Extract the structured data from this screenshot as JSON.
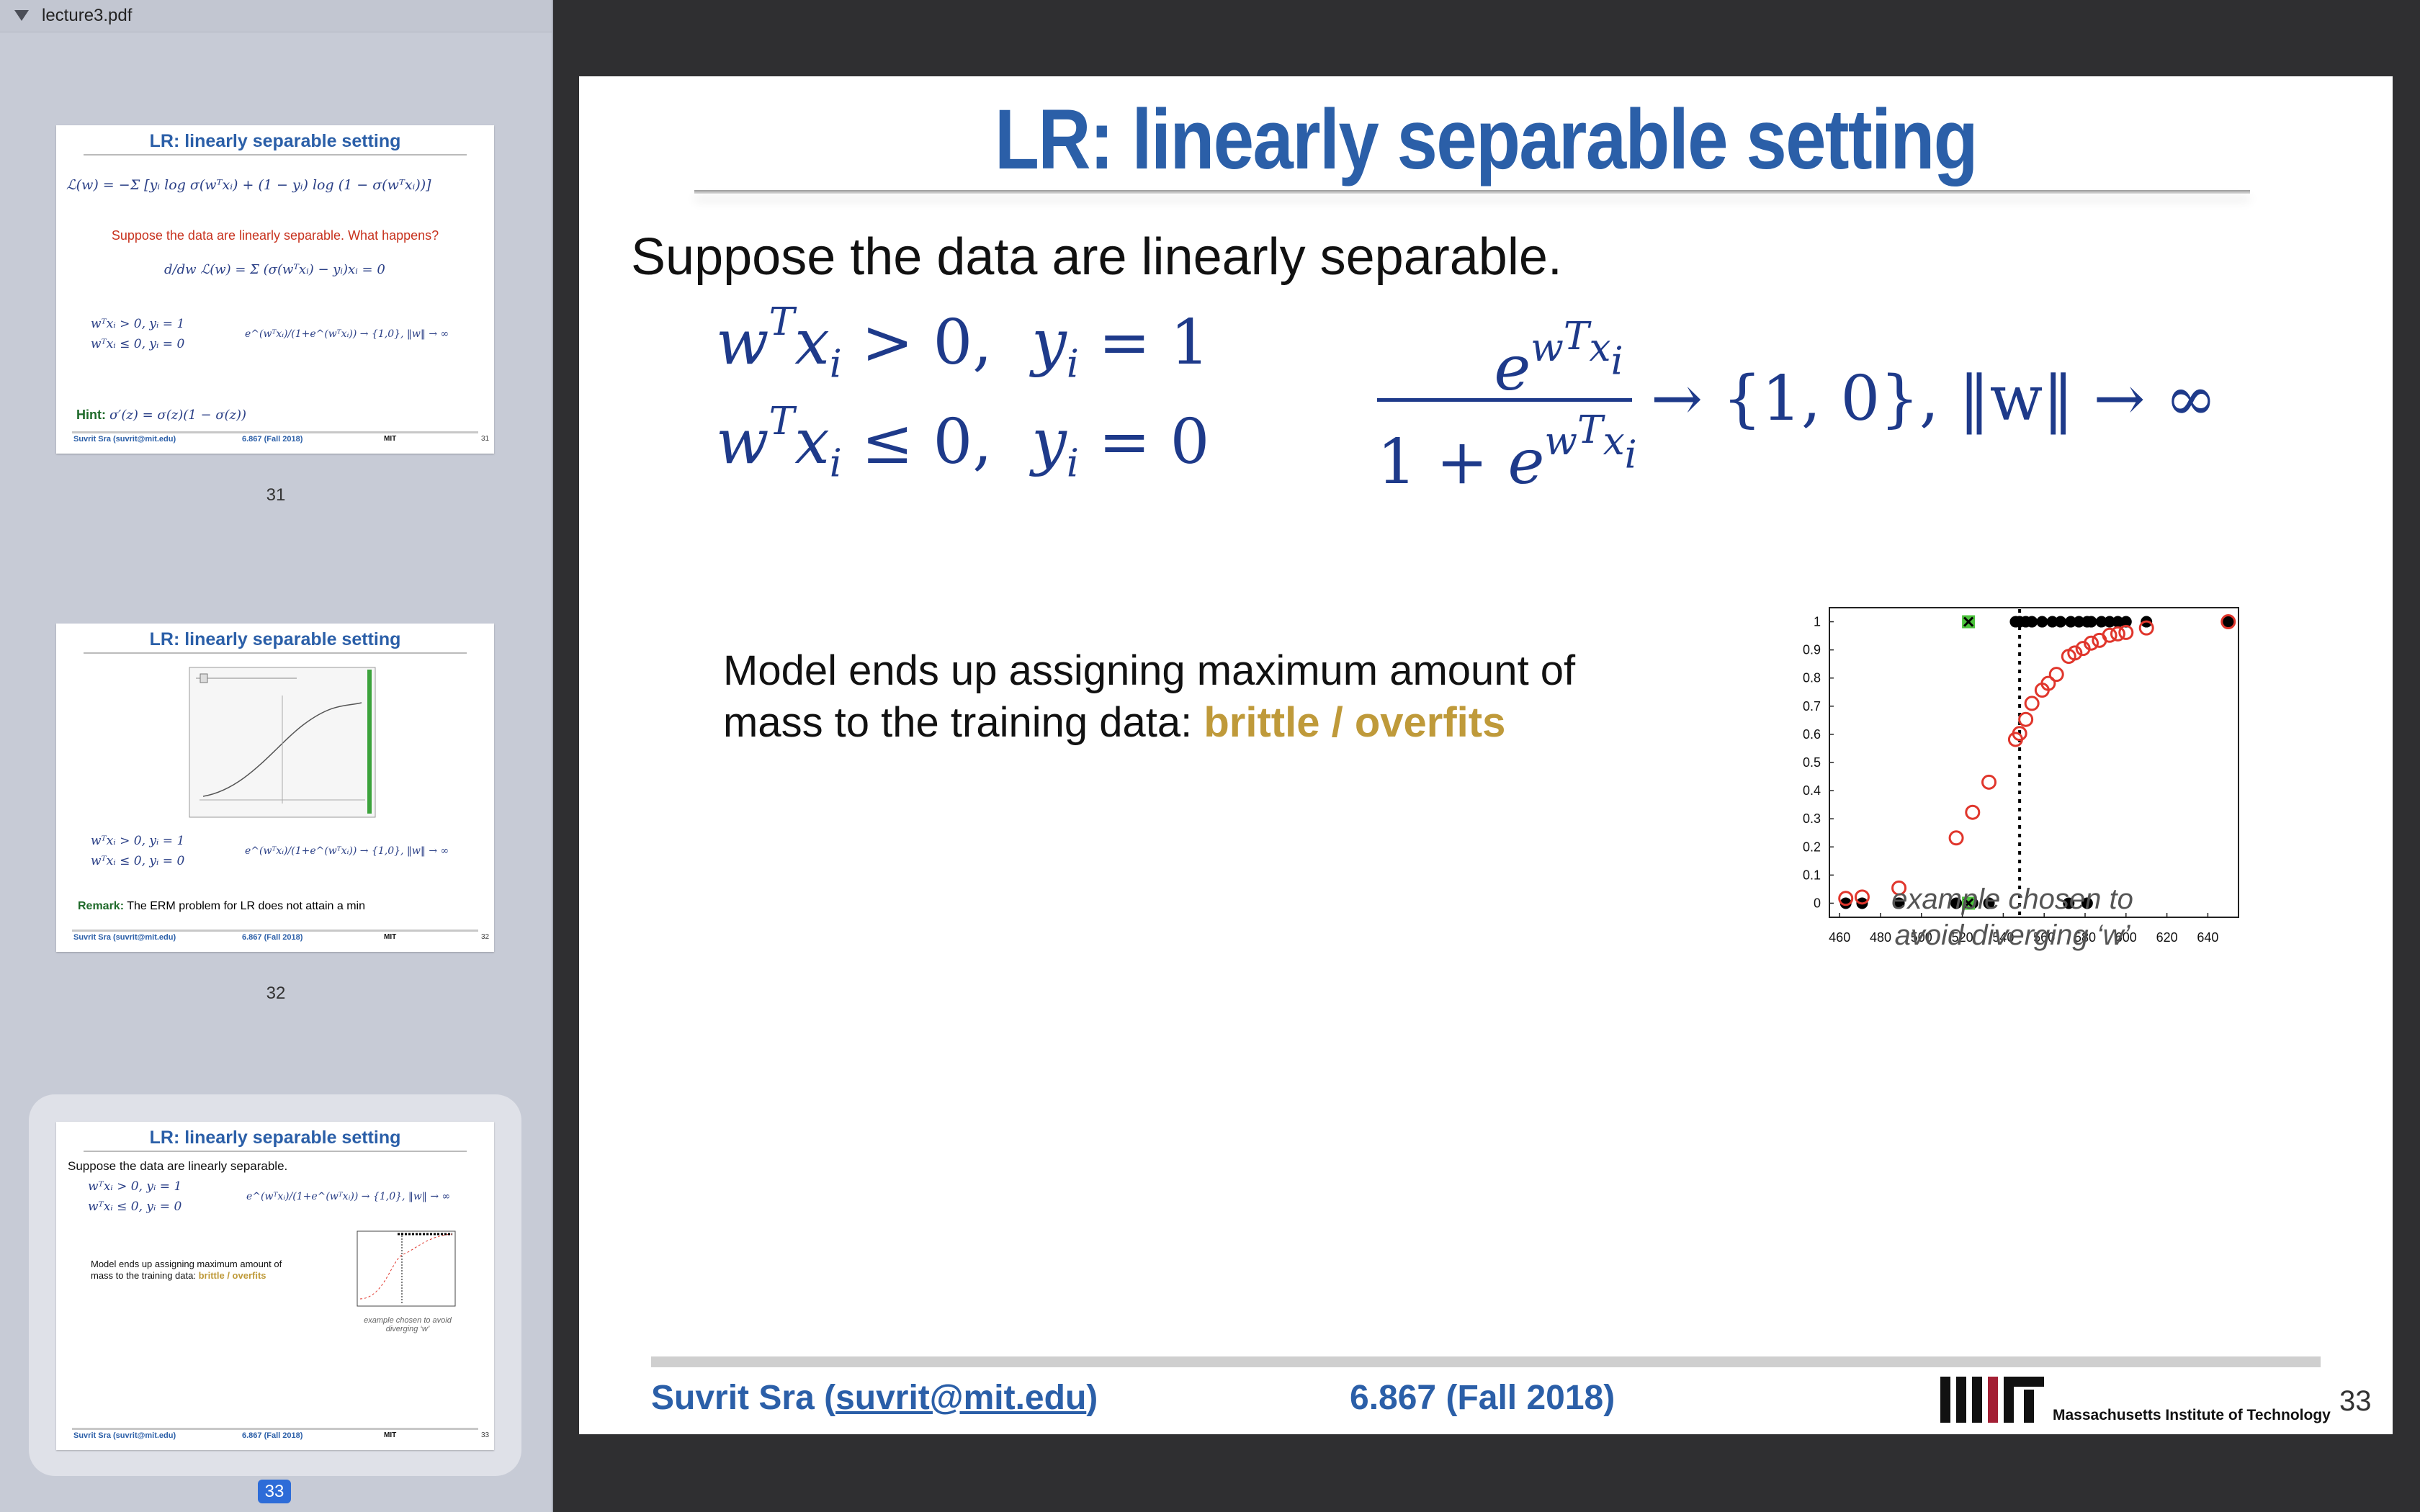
{
  "window": {
    "file_name": "lecture3.pdf"
  },
  "sidebar": {
    "selected_page": "33",
    "thumbnails": [
      {
        "page_label": "31",
        "title": "LR: linearly separable setting",
        "loss_formula": "ℒ(w) = −Σ [yᵢ log σ(wᵀxᵢ) + (1 − yᵢ) log (1 − σ(wᵀxᵢ))]",
        "question": "Suppose the data are linearly separable. What happens?",
        "gradient_formula": "d/dw ℒ(w) = Σ (σ(wᵀxᵢ) − yᵢ)xᵢ = 0",
        "cond1": "wᵀxᵢ > 0, yᵢ = 1",
        "cond2": "wᵀxᵢ ≤ 0, yᵢ = 0",
        "limit": "e^(wᵀxᵢ)/(1+e^(wᵀxᵢ)) → {1,0},  ‖w‖ → ∞",
        "hint_label": "Hint:",
        "hint": "σ′(z) = σ(z)(1 − σ(z))",
        "footer_author": "Suvrit Sra (suvrit@mit.edu)",
        "footer_course": "6.867 (Fall 2018)",
        "footer_number": "31"
      },
      {
        "page_label": "32",
        "title": "LR: linearly separable setting",
        "cond1": "wᵀxᵢ > 0, yᵢ = 1",
        "cond2": "wᵀxᵢ ≤ 0, yᵢ = 0",
        "limit": "e^(wᵀxᵢ)/(1+e^(wᵀxᵢ)) → {1,0},  ‖w‖ → ∞",
        "remark_label": "Remark:",
        "remark": "The ERM problem for LR does not attain a min",
        "footer_author": "Suvrit Sra (suvrit@mit.edu)",
        "footer_course": "6.867 (Fall 2018)",
        "footer_number": "32"
      },
      {
        "page_label": "33",
        "title": "LR: linearly separable setting",
        "intro": "Suppose the data are linearly separable.",
        "cond1": "wᵀxᵢ > 0, yᵢ = 1",
        "cond2": "wᵀxᵢ ≤ 0, yᵢ = 0",
        "limit": "e^(wᵀxᵢ)/(1+e^(wᵀxᵢ)) → {1,0},  ‖w‖ → ∞",
        "model_line1": "Model ends up assigning maximum amount of",
        "model_line2": "mass to the training data:",
        "model_highlight": "brittle / overfits",
        "caption": "example chosen to avoid diverging ‘w’",
        "footer_author": "Suvrit Sra (suvrit@mit.edu)",
        "footer_course": "6.867 (Fall 2018)",
        "footer_number": "33"
      }
    ]
  },
  "slide": {
    "title": "LR: linearly separable setting",
    "intro": "Suppose the data are linearly separable.",
    "eq_cond1": "wᵀxᵢ > 0,  yᵢ = 1",
    "eq_cond2": "wᵀxᵢ ≤ 0,  yᵢ = 0",
    "frac_numerator": "e^(wᵀxᵢ)",
    "frac_denominator": "1 + e^(wᵀxᵢ)",
    "limit_text": "→ {1, 0},    ‖w‖ → ∞",
    "model_line1": "Model ends up assigning maximum amount of",
    "model_line2": "mass to the training data: ",
    "model_highlight": "brittle / overfits",
    "caption_line1": "example chosen to",
    "caption_line2": "avoid diverging ‘w’",
    "footer_author_name": "Suvrit Sra (",
    "footer_author_email": "suvrit@mit.edu",
    "footer_author_close": ")",
    "footer_course": "6.867 (Fall 2018)",
    "footer_institution": "Massachusetts Institute of Technology",
    "slide_number": "33"
  },
  "colors": {
    "title_blue": "#2b5fa8",
    "math_blue": "#1e3a8a",
    "highlight_gold": "#bf9a3a",
    "curve_red": "#e0362c",
    "selection_blue": "#2d6cd8"
  },
  "chart_data": {
    "type": "scatter",
    "xlim": [
      455,
      655
    ],
    "ylim": [
      -0.05,
      1.05
    ],
    "x_ticks": [
      "460",
      "480",
      "500",
      "520",
      "540",
      "560",
      "580",
      "600",
      "620",
      "640"
    ],
    "y_ticks": [
      "0",
      "0.1",
      "0.2",
      "0.3",
      "0.4",
      "0.5",
      "0.6",
      "0.7",
      "0.8",
      "0.9",
      "1"
    ],
    "threshold_x": 548,
    "series": [
      {
        "marker": "filled-black",
        "points": [
          [
            463,
            0
          ],
          [
            471,
            0
          ],
          [
            489,
            0
          ],
          [
            517,
            0
          ],
          [
            525,
            0
          ],
          [
            533,
            0
          ],
          [
            572,
            0
          ],
          [
            581,
            0
          ],
          [
            546,
            1
          ],
          [
            548,
            1
          ],
          [
            551,
            1
          ],
          [
            554,
            1
          ],
          [
            559,
            1
          ],
          [
            564,
            1
          ],
          [
            568,
            1
          ],
          [
            573,
            1
          ],
          [
            577,
            1
          ],
          [
            581,
            1
          ],
          [
            583,
            1
          ],
          [
            588,
            1
          ],
          [
            592,
            1
          ],
          [
            596,
            1
          ],
          [
            600,
            1
          ],
          [
            610,
            1
          ],
          [
            650,
            1
          ]
        ]
      },
      {
        "marker": "hollow-red",
        "points": [
          [
            463,
            0.017
          ],
          [
            471,
            0.022
          ],
          [
            489,
            0.054
          ],
          [
            517,
            0.232
          ],
          [
            525,
            0.323
          ],
          [
            533,
            0.43
          ],
          [
            546,
            0.582
          ],
          [
            548,
            0.603
          ],
          [
            551,
            0.653
          ],
          [
            554,
            0.71
          ],
          [
            559,
            0.757
          ],
          [
            562,
            0.781
          ],
          [
            566,
            0.813
          ],
          [
            572,
            0.877
          ],
          [
            575,
            0.889
          ],
          [
            579,
            0.905
          ],
          [
            583,
            0.924
          ],
          [
            587,
            0.934
          ],
          [
            592,
            0.952
          ],
          [
            596,
            0.957
          ],
          [
            600,
            0.962
          ],
          [
            610,
            0.978
          ],
          [
            650,
            1.0
          ]
        ]
      },
      {
        "marker": "green-cross",
        "points": [
          [
            523,
            0
          ],
          [
            523,
            1
          ]
        ]
      }
    ]
  }
}
